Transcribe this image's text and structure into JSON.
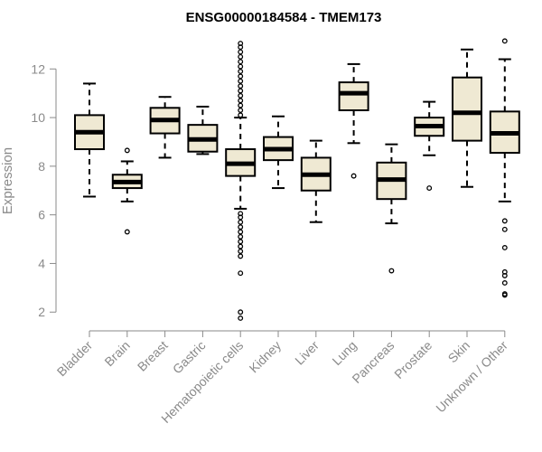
{
  "chart_data": {
    "type": "box",
    "title": "ENSG00000184584 - TMEM173",
    "xlabel": "",
    "ylabel": "Expression",
    "ylim": [
      1.6,
      13.2
    ],
    "yticks": [
      2,
      4,
      6,
      8,
      10,
      12
    ],
    "grid": false,
    "colors": {
      "box_fill": "#efe9d3",
      "stroke": "#000000",
      "axis_text": "#8a8a8a"
    },
    "categories": [
      "Bladder",
      "Brain",
      "Breast",
      "Gastric",
      "Hematopoietic cells",
      "Kidney",
      "Liver",
      "Lung",
      "Pancreas",
      "Prostate",
      "Skin",
      "Unknown / Other"
    ],
    "boxes": [
      {
        "label": "Bladder",
        "whisker_low": 6.75,
        "q1": 8.7,
        "median": 9.4,
        "q3": 10.1,
        "whisker_high": 11.4,
        "outliers": []
      },
      {
        "label": "Brain",
        "whisker_low": 6.55,
        "q1": 7.1,
        "median": 7.35,
        "q3": 7.65,
        "whisker_high": 8.2,
        "outliers": [
          5.3,
          8.65
        ]
      },
      {
        "label": "Breast",
        "whisker_low": 8.35,
        "q1": 9.35,
        "median": 9.9,
        "q3": 10.4,
        "whisker_high": 10.85,
        "outliers": []
      },
      {
        "label": "Gastric",
        "whisker_low": 8.5,
        "q1": 8.6,
        "median": 9.1,
        "q3": 9.7,
        "whisker_high": 10.45,
        "outliers": []
      },
      {
        "label": "Hematopoietic cells",
        "whisker_low": 6.25,
        "q1": 7.6,
        "median": 8.1,
        "q3": 8.7,
        "whisker_high": 10.0,
        "outliers": [
          1.75,
          2.0,
          3.6,
          4.3,
          4.5,
          4.7,
          4.9,
          5.1,
          5.3,
          5.5,
          5.7,
          5.9,
          6.05,
          10.1,
          10.3,
          10.5,
          10.7,
          10.9,
          11.1,
          11.3,
          11.5,
          11.7,
          11.9,
          12.1,
          12.3,
          12.5,
          12.7,
          12.9,
          13.05
        ]
      },
      {
        "label": "Kidney",
        "whisker_low": 7.1,
        "q1": 8.25,
        "median": 8.7,
        "q3": 9.2,
        "whisker_high": 10.05,
        "outliers": []
      },
      {
        "label": "Liver",
        "whisker_low": 5.7,
        "q1": 7.0,
        "median": 7.65,
        "q3": 8.35,
        "whisker_high": 9.05,
        "outliers": []
      },
      {
        "label": "Lung",
        "whisker_low": 8.95,
        "q1": 10.3,
        "median": 11.0,
        "q3": 11.45,
        "whisker_high": 12.2,
        "outliers": [
          7.6
        ]
      },
      {
        "label": "Pancreas",
        "whisker_low": 5.65,
        "q1": 6.65,
        "median": 7.45,
        "q3": 8.15,
        "whisker_high": 8.9,
        "outliers": [
          3.7
        ]
      },
      {
        "label": "Prostate",
        "whisker_low": 8.45,
        "q1": 9.25,
        "median": 9.65,
        "q3": 10.0,
        "whisker_high": 10.65,
        "outliers": [
          7.1
        ]
      },
      {
        "label": "Skin",
        "whisker_low": 7.15,
        "q1": 9.05,
        "median": 10.2,
        "q3": 11.65,
        "whisker_high": 12.8,
        "outliers": []
      },
      {
        "label": "Unknown / Other",
        "whisker_low": 6.55,
        "q1": 8.55,
        "median": 9.35,
        "q3": 10.25,
        "whisker_high": 12.4,
        "outliers": [
          2.7,
          2.75,
          3.2,
          3.5,
          3.65,
          4.65,
          5.4,
          5.75,
          13.15
        ]
      }
    ]
  }
}
